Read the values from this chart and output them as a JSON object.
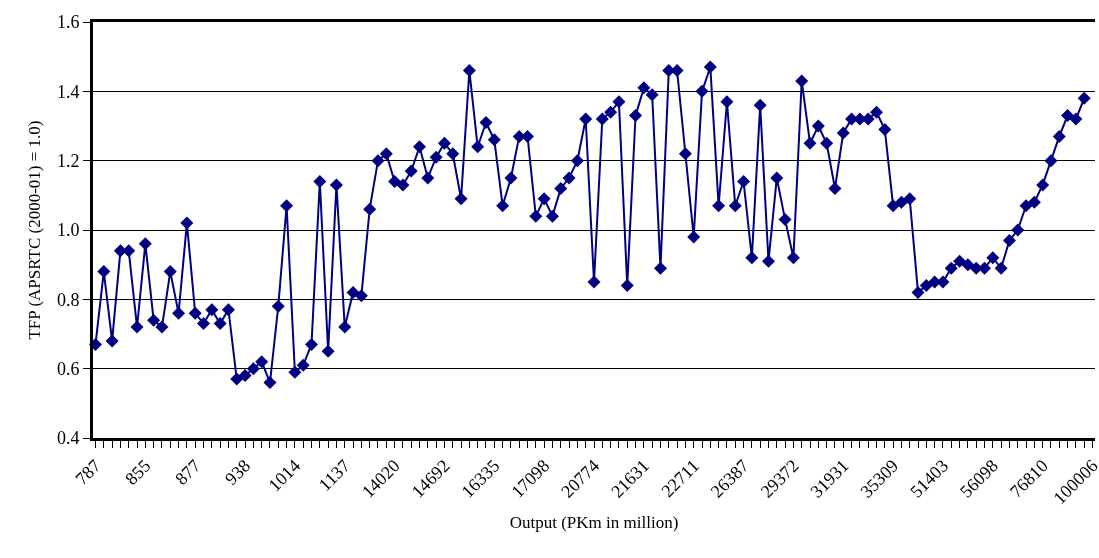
{
  "chart_data": {
    "type": "line",
    "xlabel": "Output (PKm in million)",
    "ylabel": "TFP (APSRTC (2000-01) = 1.0)",
    "categories": [
      "787",
      null,
      null,
      null,
      null,
      null,
      "855",
      null,
      null,
      null,
      null,
      null,
      "877",
      null,
      null,
      null,
      null,
      null,
      "938",
      null,
      null,
      null,
      null,
      null,
      "1014",
      null,
      null,
      null,
      null,
      null,
      "1137",
      null,
      null,
      null,
      null,
      null,
      "14020",
      null,
      null,
      null,
      null,
      null,
      "14692",
      null,
      null,
      null,
      null,
      null,
      "16335",
      null,
      null,
      null,
      null,
      null,
      "17098",
      null,
      null,
      null,
      null,
      null,
      "20774",
      null,
      null,
      null,
      null,
      null,
      "21631",
      null,
      null,
      null,
      null,
      null,
      "22711",
      null,
      null,
      null,
      null,
      null,
      "26387",
      null,
      null,
      null,
      null,
      null,
      "29372",
      null,
      null,
      null,
      null,
      null,
      "31931",
      null,
      null,
      null,
      null,
      null,
      "35309",
      null,
      null,
      null,
      null,
      null,
      "51403",
      null,
      null,
      null,
      null,
      null,
      "56098",
      null,
      null,
      null,
      null,
      null,
      "76810",
      null,
      null,
      null,
      null,
      null,
      "100006"
    ],
    "values": [
      0.67,
      0.88,
      0.68,
      0.94,
      0.94,
      0.72,
      0.96,
      0.74,
      0.72,
      0.88,
      0.76,
      1.02,
      0.76,
      0.73,
      0.77,
      0.73,
      0.77,
      0.57,
      0.58,
      0.6,
      0.62,
      0.56,
      0.78,
      1.07,
      0.59,
      0.61,
      0.67,
      1.14,
      0.65,
      1.13,
      0.72,
      0.82,
      0.81,
      1.06,
      1.2,
      1.22,
      1.14,
      1.13,
      1.17,
      1.24,
      1.15,
      1.21,
      1.25,
      1.22,
      1.09,
      1.46,
      1.24,
      1.31,
      1.26,
      1.07,
      1.15,
      1.27,
      1.27,
      1.04,
      1.09,
      1.04,
      1.12,
      1.15,
      1.2,
      1.32,
      0.85,
      1.32,
      1.34,
      1.37,
      0.84,
      1.33,
      1.41,
      1.39,
      0.89,
      1.46,
      1.46,
      1.22,
      0.98,
      1.4,
      1.47,
      1.07,
      1.37,
      1.07,
      1.14,
      0.92,
      1.36,
      0.91,
      1.15,
      1.03,
      0.92,
      1.43,
      1.25,
      1.3,
      1.25,
      1.12,
      1.28,
      1.32,
      1.32,
      1.32,
      1.34,
      1.29,
      1.07,
      1.08,
      1.09,
      0.82,
      0.84,
      0.85,
      0.85,
      0.89,
      0.91,
      0.9,
      0.89,
      0.89,
      0.92,
      0.89,
      0.97,
      1.0,
      1.07,
      1.08,
      1.13,
      1.2,
      1.27,
      1.33,
      1.32,
      1.38,
      null
    ],
    "color": "#000080",
    "marker": "diamond",
    "line_style": "solid",
    "ylim": [
      0.4,
      1.6
    ],
    "yticks": [
      0.4,
      0.6,
      0.8,
      {
        "value": 1.0,
        "label": "1.0"
      },
      1.2,
      1.4,
      1.6
    ],
    "grid": "y",
    "legend": false
  }
}
